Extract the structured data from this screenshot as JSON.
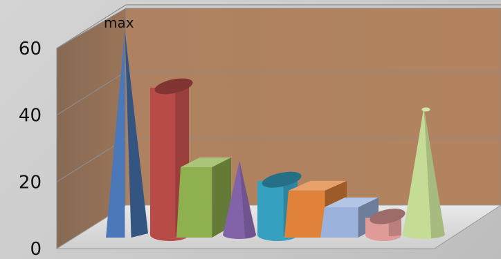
{
  "chart_data": {
    "type": "bar",
    "title": "",
    "xlabel": "",
    "ylabel": "",
    "ylim": [
      0,
      60
    ],
    "yticks": [
      "0",
      "20",
      "40",
      "60"
    ],
    "grid": true,
    "legend": "none",
    "annotation": "max",
    "series": [
      {
        "shape": "pyramid",
        "value": 62,
        "color": "#4a78b8"
      },
      {
        "shape": "cylinder",
        "value": 47,
        "color": "#b84a48"
      },
      {
        "shape": "box",
        "value": 24,
        "color": "#8fb04e"
      },
      {
        "shape": "cone",
        "value": 23,
        "color": "#8262a8"
      },
      {
        "shape": "cylinder",
        "value": 19,
        "color": "#35a0bf"
      },
      {
        "shape": "box",
        "value": 17,
        "color": "#e0823a"
      },
      {
        "shape": "box",
        "value": 12,
        "color": "#9bb3dc"
      },
      {
        "shape": "cylinder",
        "value": 8,
        "color": "#e09a98"
      },
      {
        "shape": "cone",
        "value": 39,
        "color": "#c4dc96"
      }
    ]
  }
}
